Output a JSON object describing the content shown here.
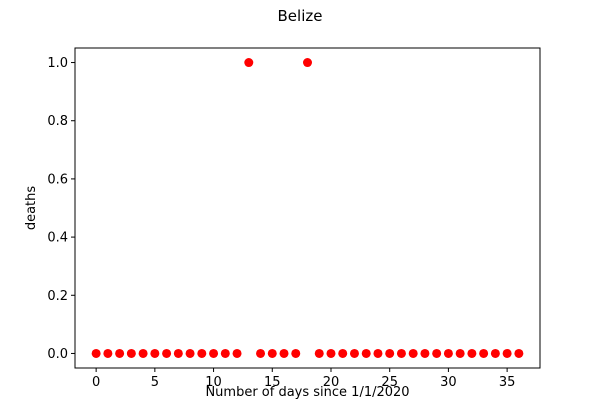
{
  "chart_data": {
    "type": "scatter",
    "title": "Belize",
    "xlabel": "Number of days since 1/1/2020",
    "ylabel": "deaths",
    "xlim": [
      -1.8,
      37.8
    ],
    "ylim": [
      -0.05,
      1.05
    ],
    "xticks": [
      0,
      5,
      10,
      15,
      20,
      25,
      30,
      35
    ],
    "xtick_labels": [
      "0",
      "5",
      "10",
      "15",
      "20",
      "25",
      "30",
      "35"
    ],
    "yticks": [
      0.0,
      0.2,
      0.4,
      0.6,
      0.8,
      1.0
    ],
    "ytick_labels": [
      "0.0",
      "0.2",
      "0.4",
      "0.6",
      "0.8",
      "1.0"
    ],
    "grid": false,
    "marker_color": "#ff0000",
    "x": [
      0,
      1,
      2,
      3,
      4,
      5,
      6,
      7,
      8,
      9,
      10,
      11,
      12,
      13,
      14,
      15,
      16,
      17,
      18,
      19,
      20,
      21,
      22,
      23,
      24,
      25,
      26,
      27,
      28,
      29,
      30,
      31,
      32,
      33,
      34,
      35,
      36
    ],
    "y": [
      0,
      0,
      0,
      0,
      0,
      0,
      0,
      0,
      0,
      0,
      0,
      0,
      0,
      1,
      0,
      0,
      0,
      0,
      1,
      0,
      0,
      0,
      0,
      0,
      0,
      0,
      0,
      0,
      0,
      0,
      0,
      0,
      0,
      0,
      0,
      0,
      0
    ]
  }
}
